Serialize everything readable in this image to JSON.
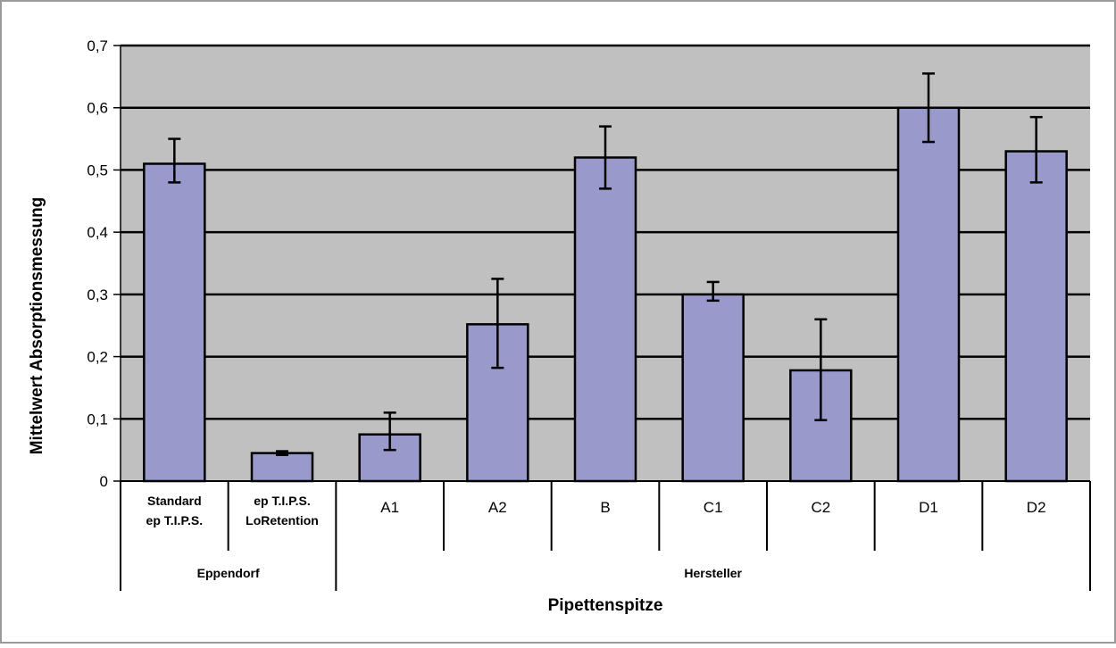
{
  "chart_data": {
    "type": "bar",
    "xlabel": "Pipettenspitze",
    "ylabel": "Mittelwert Absorptionsmessung",
    "ylim": [
      0,
      0.7
    ],
    "y_ticks": [
      {
        "value": 0,
        "label": "0"
      },
      {
        "value": 0.1,
        "label": "0,1"
      },
      {
        "value": 0.2,
        "label": "0,2"
      },
      {
        "value": 0.3,
        "label": "0,3"
      },
      {
        "value": 0.4,
        "label": "0,4"
      },
      {
        "value": 0.5,
        "label": "0,5"
      },
      {
        "value": 0.6,
        "label": "0,6"
      },
      {
        "value": 0.7,
        "label": "0,7"
      }
    ],
    "grid": true,
    "categories": [
      {
        "lines": [
          "Standard",
          "ep T.I.P.S."
        ],
        "bold": true
      },
      {
        "lines": [
          "ep T.I.P.S.",
          "LoRetention"
        ],
        "bold": true
      },
      {
        "lines": [
          "A1"
        ],
        "bold": false
      },
      {
        "lines": [
          "A2"
        ],
        "bold": false
      },
      {
        "lines": [
          "B"
        ],
        "bold": false
      },
      {
        "lines": [
          "C1"
        ],
        "bold": false
      },
      {
        "lines": [
          "C2"
        ],
        "bold": false
      },
      {
        "lines": [
          "D1"
        ],
        "bold": false
      },
      {
        "lines": [
          "D2"
        ],
        "bold": false
      }
    ],
    "groups": [
      {
        "label": "Eppendorf",
        "start": 0,
        "end": 1
      },
      {
        "label": "Hersteller",
        "start": 2,
        "end": 8
      }
    ],
    "values": [
      0.51,
      0.045,
      0.075,
      0.252,
      0.52,
      0.3,
      0.178,
      0.6,
      0.53
    ],
    "error_low": [
      0.48,
      0.042,
      0.05,
      0.182,
      0.47,
      0.29,
      0.098,
      0.545,
      0.48
    ],
    "error_high": [
      0.55,
      0.048,
      0.11,
      0.325,
      0.57,
      0.32,
      0.26,
      0.655,
      0.585
    ],
    "colors": {
      "bar_fill": "#9999cc",
      "bar_stroke": "#000000",
      "plot_background": "#c0c0c0",
      "gridline": "#000000",
      "frame": "#9a9a9a"
    }
  }
}
